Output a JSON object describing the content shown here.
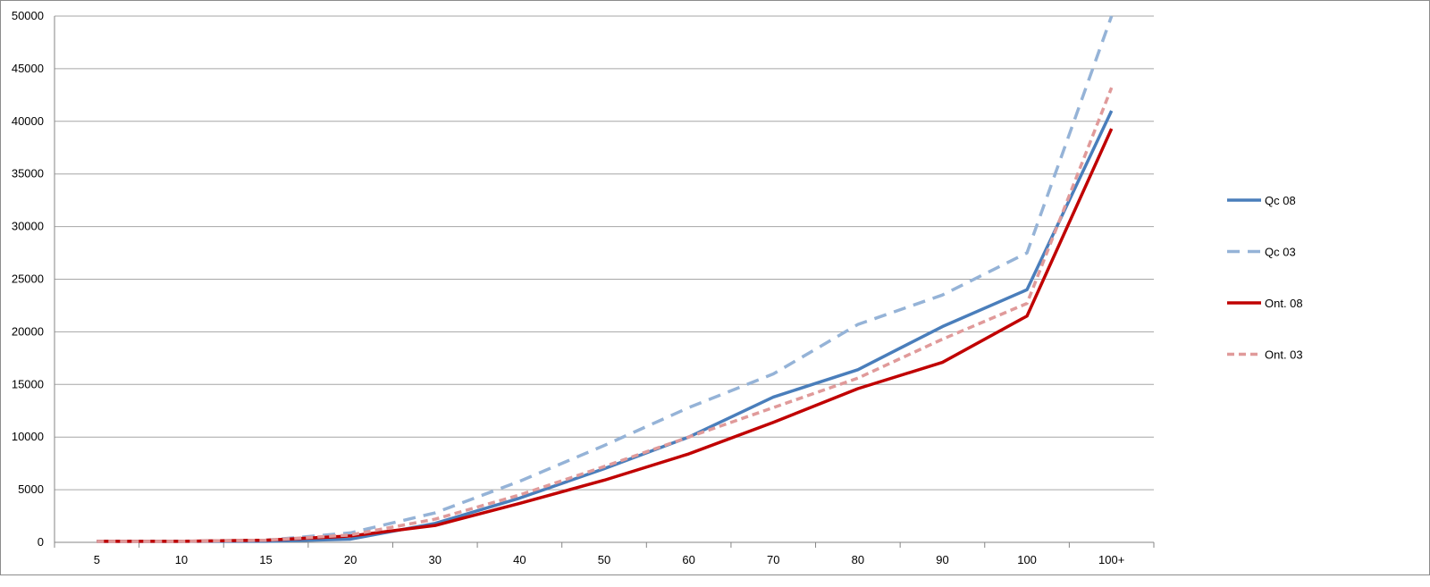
{
  "chart_data": {
    "type": "line",
    "title": "",
    "xlabel": "",
    "ylabel": "",
    "categories": [
      "5",
      "10",
      "15",
      "20",
      "30",
      "40",
      "50",
      "60",
      "70",
      "80",
      "90",
      "100",
      "100+"
    ],
    "ylim": [
      0,
      50000
    ],
    "yticks": [
      0,
      5000,
      10000,
      15000,
      20000,
      25000,
      30000,
      35000,
      40000,
      45000,
      50000
    ],
    "grid": true,
    "legend_position": "right",
    "series": [
      {
        "name": "Qc 08",
        "color": "#4a7ebb",
        "dash": "solid",
        "values": [
          100,
          100,
          100,
          300,
          1800,
          4200,
          7000,
          10000,
          13800,
          16400,
          20500,
          24000,
          41000
        ]
      },
      {
        "name": "Qc 03",
        "color": "#95b3d7",
        "dash": "dashed",
        "values": [
          100,
          100,
          200,
          900,
          2800,
          5800,
          9200,
          12800,
          16000,
          20700,
          23500,
          27500,
          50000
        ]
      },
      {
        "name": "Ont. 08",
        "color": "#c00000",
        "dash": "solid",
        "values": [
          100,
          100,
          200,
          600,
          1600,
          3700,
          5900,
          8400,
          11400,
          14600,
          17100,
          21500,
          39300
        ]
      },
      {
        "name": "Ont. 03",
        "color": "#e09a9a",
        "dash": "dotted-dash",
        "values": [
          100,
          100,
          200,
          700,
          2200,
          4500,
          7200,
          10000,
          12800,
          15600,
          19300,
          22700,
          43200
        ]
      }
    ]
  }
}
